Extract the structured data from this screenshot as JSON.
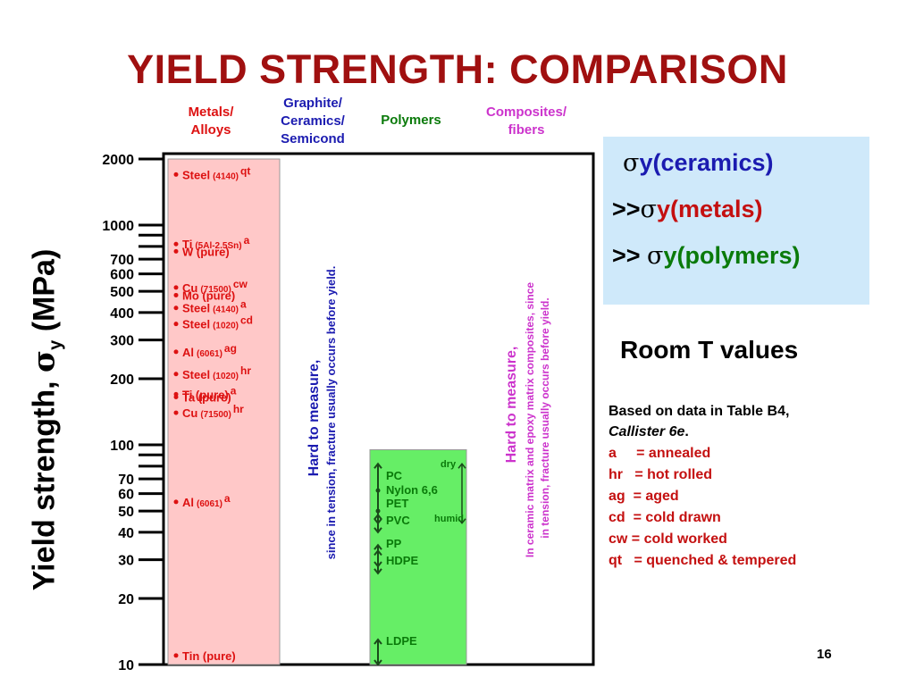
{
  "slide": {
    "title": "YIELD STRENGTH: COMPARISON",
    "page_number": "16"
  },
  "column_headers": {
    "metals": {
      "line1": "Metals/",
      "line2": "Alloys",
      "color": "#dd1111"
    },
    "ceramics": {
      "line1": "Graphite/",
      "line2": "Ceramics/",
      "line3": "Semicond",
      "color": "#1b1bb0"
    },
    "polymers": {
      "line1": "Polymers",
      "color": "#0a7a0a"
    },
    "composites": {
      "line1": "Composites/",
      "line2": "fibers",
      "color": "#cc33cc"
    }
  },
  "y_axis": {
    "label_main": "Yield strength, ",
    "label_sigma": "σ",
    "label_sub": "y",
    "label_unit": " (MPa)"
  },
  "summary": {
    "line1_sigma": "σ",
    "line1_text": "y(ceramics)",
    "line1_color": "#1b1bb0",
    "line2_prefix": ">>",
    "line2_sigma": "σ",
    "line2_text": "y(metals)",
    "line2_color": "#c41010",
    "line3_prefix": ">> ",
    "line3_sigma": "σ",
    "line3_text": "y(polymers)",
    "line3_color": "#0a7a0a",
    "bg_color": "#cfe9fa"
  },
  "room_t": "Room T values",
  "notes": {
    "source_line1": "Based on data in Table B4,",
    "source_line2": "Callister 6e",
    "source_line2_end": ".",
    "legend": [
      {
        "abbr": "a",
        "sep": "     = ",
        "meaning": "annealed"
      },
      {
        "abbr": "hr",
        "sep": "   = ",
        "meaning": "hot rolled"
      },
      {
        "abbr": "ag",
        "sep": "  = ",
        "meaning": "aged"
      },
      {
        "abbr": "cd",
        "sep": "  = ",
        "meaning": "cold drawn"
      },
      {
        "abbr": "cw",
        "sep": " = ",
        "meaning": "cold worked"
      },
      {
        "abbr": "qt",
        "sep": "   = ",
        "meaning": "quenched & tempered"
      }
    ],
    "legend_color": "#c41010"
  },
  "chart_data": {
    "type": "scatter",
    "y_scale": "log",
    "ylim": [
      10,
      2000
    ],
    "y_ticks": [
      {
        "value": 10,
        "label": "10"
      },
      {
        "value": 20,
        "label": "20"
      },
      {
        "value": 30,
        "label": "30"
      },
      {
        "value": 40,
        "label": "40"
      },
      {
        "value": 50,
        "label": "50"
      },
      {
        "value": 60,
        "label": "60"
      },
      {
        "value": 70,
        "label": "70"
      },
      {
        "value": 80,
        "label": ""
      },
      {
        "value": 90,
        "label": ""
      },
      {
        "value": 100,
        "label": "100"
      },
      {
        "value": 200,
        "label": "200"
      },
      {
        "value": 300,
        "label": "300"
      },
      {
        "value": 400,
        "label": "400"
      },
      {
        "value": 500,
        "label": "500"
      },
      {
        "value": 600,
        "label": "600"
      },
      {
        "value": 700,
        "label": "700"
      },
      {
        "value": 800,
        "label": ""
      },
      {
        "value": 900,
        "label": ""
      },
      {
        "value": 1000,
        "label": "1000"
      },
      {
        "value": 2000,
        "label": "2000"
      }
    ],
    "grid": false,
    "categories": [
      "Metals/Alloys",
      "Graphite/Ceramics/Semicond",
      "Polymers",
      "Composites/fibers"
    ],
    "metals": {
      "range": [
        10,
        2000
      ],
      "color": "#ffc8c8",
      "text_color": "#dd1111",
      "points": [
        {
          "name": "Steel",
          "cond": "(4140)",
          "treat": "qt",
          "value": 1700
        },
        {
          "name": "Ti",
          "cond": "(5Al-2.5Sn)",
          "treat": "a",
          "value": 820
        },
        {
          "name": "W (pure)",
          "cond": "",
          "treat": "",
          "value": 760
        },
        {
          "name": "Cu",
          "cond": "(71500)",
          "treat": "cw",
          "value": 520
        },
        {
          "name": "Mo (pure)",
          "cond": "",
          "treat": "",
          "value": 480
        },
        {
          "name": "Steel",
          "cond": "(4140)",
          "treat": "a",
          "value": 420
        },
        {
          "name": "Steel",
          "cond": "(1020)",
          "treat": "cd",
          "value": 355
        },
        {
          "name": "Al",
          "cond": "(6061)",
          "treat": "ag",
          "value": 265
        },
        {
          "name": "Steel",
          "cond": "(1020)",
          "treat": "hr",
          "value": 210
        },
        {
          "name": "Ti (pure)",
          "cond": "",
          "treat": "a",
          "value": 170
        },
        {
          "name": "Ta (pure)",
          "cond": "",
          "treat": "",
          "value": 165
        },
        {
          "name": "Cu",
          "cond": "(71500)",
          "treat": "hr",
          "value": 140
        },
        {
          "name": "Al",
          "cond": "(6061)",
          "treat": "a",
          "value": 55
        },
        {
          "name": "Tin (pure)",
          "cond": "",
          "treat": "",
          "value": 11
        }
      ]
    },
    "ceramics": {
      "note_line1": "Hard to measure,",
      "note_line2": "since in tension, fracture usually occurs before yield.",
      "color": "#1b1bb0"
    },
    "polymers": {
      "range": [
        10,
        95
      ],
      "color": "#66ee66",
      "text_color": "#0a7a0a",
      "items": [
        {
          "name": "PC",
          "low": 62,
          "high": 62
        },
        {
          "name": "Nylon 6,6",
          "low": 44,
          "high": 82
        },
        {
          "name": "PET",
          "low": 50,
          "high": 50
        },
        {
          "name": "PVC",
          "low": 40,
          "high": 48
        },
        {
          "name": "PP",
          "low": 28,
          "high": 35
        },
        {
          "name": "HDPE",
          "low": 26,
          "high": 33
        },
        {
          "name": "LDPE",
          "low": 10,
          "high": 13
        }
      ],
      "label_dry": "dry",
      "label_humid": "humid"
    },
    "composites": {
      "note_line1": "Hard to measure,",
      "note_line2": "In ceramic matrix and epoxy matrix composites, since",
      "note_line3": "in tension, fracture usually occurs before yield.",
      "color": "#cc33cc"
    }
  }
}
